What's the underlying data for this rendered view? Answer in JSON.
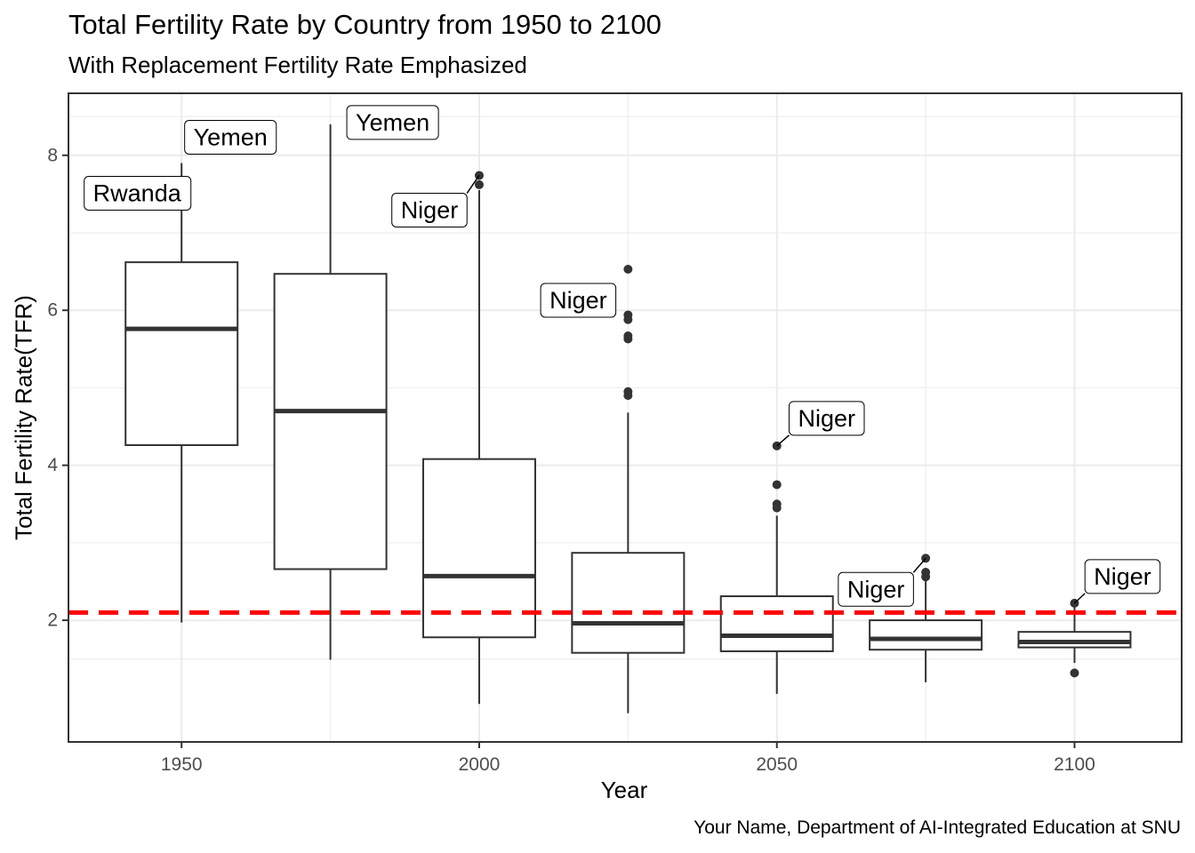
{
  "chart_data": {
    "type": "box",
    "title": "Total Fertility Rate by Country from 1950 to 2100",
    "subtitle": "With Replacement Fertility Rate Emphasized",
    "xlabel": "Year",
    "ylabel": "Total Fertility Rate(TFR)",
    "caption": "Your Name, Department of AI-Integrated Education at SNU",
    "xlim": [
      1931,
      2118
    ],
    "ylim": [
      0.43,
      8.8
    ],
    "x_ticks": [
      1950,
      2000,
      2050,
      2100
    ],
    "x_tick_labels": [
      "1950",
      "2000",
      "2050",
      "2100"
    ],
    "y_ticks": [
      2,
      4,
      6,
      8
    ],
    "y_tick_labels": [
      "2",
      "4",
      "6",
      "8"
    ],
    "grid": true,
    "reference_line": {
      "y": 2.1,
      "color": "#ff0000",
      "style": "dashed"
    },
    "boxes": [
      {
        "x": 1950,
        "q1": 4.26,
        "median": 5.76,
        "q3": 6.62,
        "whisker_low": 1.97,
        "whisker_high": 7.9,
        "outliers": []
      },
      {
        "x": 1975,
        "q1": 2.66,
        "median": 4.7,
        "q3": 6.47,
        "whisker_low": 1.49,
        "whisker_high": 8.4,
        "outliers": []
      },
      {
        "x": 2000,
        "q1": 1.78,
        "median": 2.57,
        "q3": 4.08,
        "whisker_low": 0.92,
        "whisker_high": 7.55,
        "outliers": [
          7.62,
          7.74
        ]
      },
      {
        "x": 2025,
        "q1": 1.58,
        "median": 1.96,
        "q3": 2.87,
        "whisker_low": 0.8,
        "whisker_high": 4.68,
        "outliers": [
          4.9,
          4.95,
          5.63,
          5.67,
          5.88,
          5.94,
          6.53
        ]
      },
      {
        "x": 2050,
        "q1": 1.6,
        "median": 1.8,
        "q3": 2.31,
        "whisker_low": 1.05,
        "whisker_high": 3.35,
        "outliers": [
          3.45,
          3.5,
          3.75,
          4.25
        ]
      },
      {
        "x": 2075,
        "q1": 1.62,
        "median": 1.76,
        "q3": 2.0,
        "whisker_low": 1.2,
        "whisker_high": 2.52,
        "outliers": [
          2.56,
          2.62,
          2.8
        ]
      },
      {
        "x": 2100,
        "q1": 1.65,
        "median": 1.72,
        "q3": 1.85,
        "whisker_low": 1.45,
        "whisker_high": 2.2,
        "outliers": [
          1.32,
          2.22
        ]
      }
    ],
    "annotations": [
      {
        "text": "Rwanda",
        "x": 1950,
        "y": 7.9
      },
      {
        "text": "Yemen",
        "x": 1950,
        "y": 7.9
      },
      {
        "text": "Yemen",
        "x": 1975,
        "y": 8.4
      },
      {
        "text": "Niger",
        "x": 2000,
        "y": 7.74
      },
      {
        "text": "Niger",
        "x": 2025,
        "y": 6.53
      },
      {
        "text": "Niger",
        "x": 2050,
        "y": 4.25
      },
      {
        "text": "Niger",
        "x": 2075,
        "y": 2.8
      },
      {
        "text": "Niger",
        "x": 2100,
        "y": 2.22
      }
    ],
    "colors": {
      "box": "#333333",
      "median": "#333333",
      "outlier": "#333333",
      "grid": "#ebebeb",
      "reference": "#ff0000"
    }
  }
}
